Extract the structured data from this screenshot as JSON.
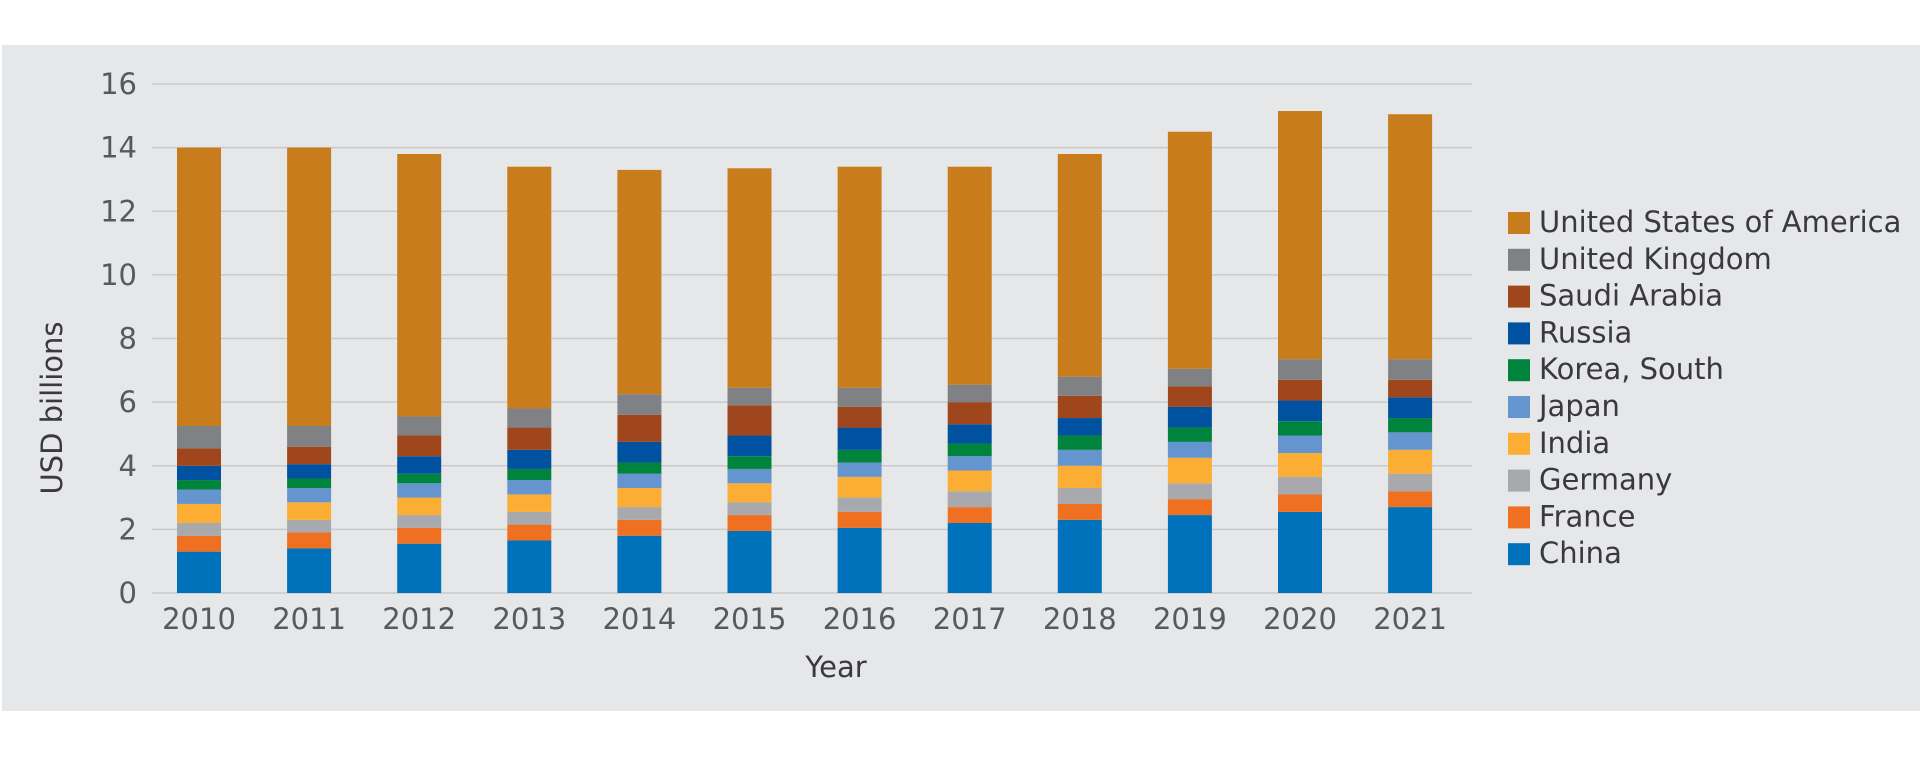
{
  "chart_data": {
    "type": "bar",
    "stacked": true,
    "title": "",
    "xlabel": "Year",
    "ylabel": "USD billions",
    "ylim": [
      0,
      16
    ],
    "yticks": [
      0,
      2,
      4,
      6,
      8,
      10,
      12,
      14,
      16
    ],
    "grid": true,
    "legend_position": "right",
    "categories": [
      "2010",
      "2011",
      "2012",
      "2013",
      "2014",
      "2015",
      "2016",
      "2017",
      "2018",
      "2019",
      "2020",
      "2021"
    ],
    "series": [
      {
        "name": "China",
        "color": "#0072bc",
        "values": [
          1.3,
          1.4,
          1.55,
          1.65,
          1.8,
          1.95,
          2.05,
          2.2,
          2.3,
          2.45,
          2.55,
          2.7
        ]
      },
      {
        "name": "France",
        "color": "#f07022",
        "values": [
          0.5,
          0.5,
          0.5,
          0.5,
          0.5,
          0.5,
          0.5,
          0.5,
          0.5,
          0.5,
          0.55,
          0.5
        ]
      },
      {
        "name": "Germany",
        "color": "#a7a9ac",
        "values": [
          0.4,
          0.4,
          0.4,
          0.4,
          0.4,
          0.4,
          0.45,
          0.5,
          0.5,
          0.5,
          0.55,
          0.55
        ]
      },
      {
        "name": "India",
        "color": "#fbae33",
        "values": [
          0.6,
          0.55,
          0.55,
          0.55,
          0.6,
          0.6,
          0.65,
          0.65,
          0.7,
          0.8,
          0.75,
          0.75
        ]
      },
      {
        "name": "Japan",
        "color": "#6495cf",
        "values": [
          0.45,
          0.45,
          0.45,
          0.45,
          0.45,
          0.45,
          0.45,
          0.45,
          0.5,
          0.5,
          0.55,
          0.55
        ]
      },
      {
        "name": "Korea, South",
        "color": "#00843d",
        "values": [
          0.3,
          0.3,
          0.3,
          0.35,
          0.35,
          0.4,
          0.4,
          0.4,
          0.45,
          0.45,
          0.45,
          0.45
        ]
      },
      {
        "name": "Russia",
        "color": "#0052a0",
        "values": [
          0.45,
          0.45,
          0.55,
          0.6,
          0.65,
          0.65,
          0.7,
          0.6,
          0.55,
          0.65,
          0.65,
          0.65
        ]
      },
      {
        "name": "Saudi Arabia",
        "color": "#a0461c",
        "values": [
          0.55,
          0.55,
          0.65,
          0.7,
          0.85,
          0.95,
          0.65,
          0.7,
          0.7,
          0.65,
          0.65,
          0.55
        ]
      },
      {
        "name": "United Kingdom",
        "color": "#808184",
        "values": [
          0.7,
          0.65,
          0.6,
          0.6,
          0.65,
          0.55,
          0.6,
          0.55,
          0.6,
          0.55,
          0.65,
          0.65
        ]
      },
      {
        "name": "United States of America",
        "color": "#c97c1b",
        "values": [
          8.75,
          8.75,
          8.25,
          7.6,
          7.05,
          6.9,
          6.95,
          6.85,
          7.0,
          7.45,
          7.8,
          7.7
        ]
      }
    ]
  }
}
